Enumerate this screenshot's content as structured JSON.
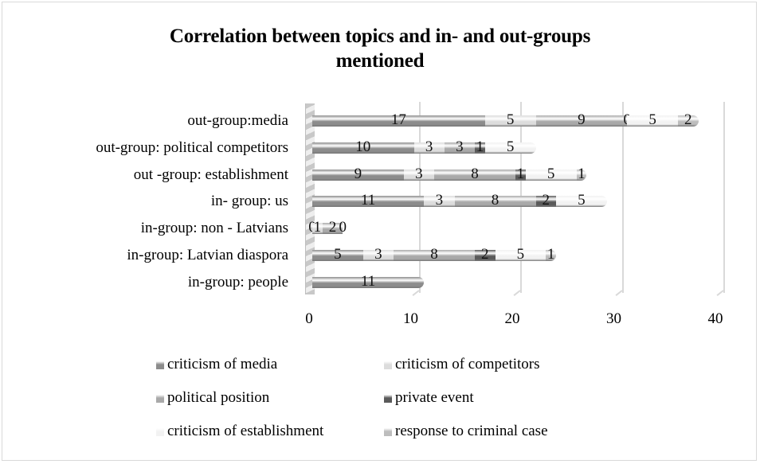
{
  "chart_data": {
    "type": "bar",
    "orientation": "horizontal",
    "stacked": true,
    "style": "3d-cylinder",
    "title": "Correlation between topics and in- and out-groups mentioned",
    "title_lines": [
      "Correlation between topics and in- and out-groups",
      "mentioned"
    ],
    "xlabel": "",
    "ylabel": "",
    "xlim": [
      0,
      40
    ],
    "x_ticks": [
      "0",
      "10",
      "20",
      "30",
      "40"
    ],
    "grid": true,
    "legend_position": "bottom",
    "categories": [
      "out-group:media",
      "out-group: political competitors",
      "out -group: establishment",
      "in- group: us",
      "in-group: non - Latvians",
      "in-group: Latvian diaspora",
      "in-group: people"
    ],
    "series": [
      {
        "name": "criticism of media",
        "color": "#8c8c8c",
        "values": [
          17,
          10,
          9,
          11,
          0,
          5,
          11
        ]
      },
      {
        "name": "criticism of competitors",
        "color": "#dcdcdc",
        "values": [
          5,
          3,
          3,
          3,
          1,
          3,
          null
        ]
      },
      {
        "name": "political position",
        "color": "#a9a9a9",
        "values": [
          9,
          3,
          8,
          8,
          2,
          8,
          null
        ]
      },
      {
        "name": "private event",
        "color": "#5a5a5a",
        "values": [
          0,
          1,
          1,
          2,
          0,
          2,
          null
        ]
      },
      {
        "name": "criticism of establishment",
        "color": "#f2f2f2",
        "values": [
          5,
          5,
          5,
          5,
          null,
          5,
          null
        ]
      },
      {
        "name": "response to criminal case",
        "color": "#bdbdbd",
        "values": [
          2,
          null,
          1,
          null,
          null,
          1,
          null
        ]
      }
    ]
  },
  "title": {
    "line1": "Correlation between topics and in- and out-groups",
    "line2": "mentioned"
  },
  "legend": [
    {
      "label": "criticism of media",
      "color": "#8c8c8c"
    },
    {
      "label": "criticism of competitors",
      "color": "#dcdcdc"
    },
    {
      "label": "political position",
      "color": "#a9a9a9"
    },
    {
      "label": "private event",
      "color": "#5a5a5a"
    },
    {
      "label": "criticism of establishment",
      "color": "#f2f2f2"
    },
    {
      "label": "response to criminal case",
      "color": "#bdbdbd"
    }
  ]
}
